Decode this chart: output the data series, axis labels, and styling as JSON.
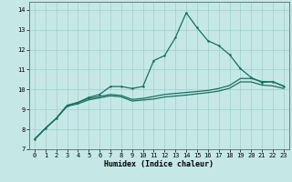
{
  "xlabel": "Humidex (Indice chaleur)",
  "xlim": [
    -0.5,
    23.5
  ],
  "ylim": [
    7.0,
    14.4
  ],
  "yticks": [
    7,
    8,
    9,
    10,
    11,
    12,
    13,
    14
  ],
  "xticks": [
    0,
    1,
    2,
    3,
    4,
    5,
    6,
    7,
    8,
    9,
    10,
    11,
    12,
    13,
    14,
    15,
    16,
    17,
    18,
    19,
    20,
    21,
    22,
    23
  ],
  "bg_color": "#c5e8e6",
  "grid_color": "#9ecece",
  "line_color": "#1a7060",
  "line1_y": [
    7.5,
    8.05,
    8.55,
    9.2,
    9.35,
    9.6,
    9.75,
    10.15,
    10.15,
    10.05,
    10.15,
    11.45,
    11.7,
    12.6,
    13.85,
    13.1,
    12.45,
    12.2,
    11.75,
    11.05,
    10.6,
    10.35,
    10.4,
    10.15
  ],
  "line2_y": [
    7.5,
    8.05,
    8.55,
    9.2,
    9.35,
    9.55,
    9.65,
    9.75,
    9.7,
    9.5,
    9.55,
    9.65,
    9.75,
    9.8,
    9.85,
    9.9,
    9.95,
    10.05,
    10.2,
    10.55,
    10.55,
    10.4,
    10.38,
    10.18
  ],
  "line3_y": [
    7.5,
    8.05,
    8.55,
    9.15,
    9.28,
    9.48,
    9.58,
    9.68,
    9.63,
    9.42,
    9.47,
    9.52,
    9.62,
    9.67,
    9.72,
    9.78,
    9.84,
    9.92,
    10.06,
    10.38,
    10.38,
    10.22,
    10.18,
    10.05
  ]
}
